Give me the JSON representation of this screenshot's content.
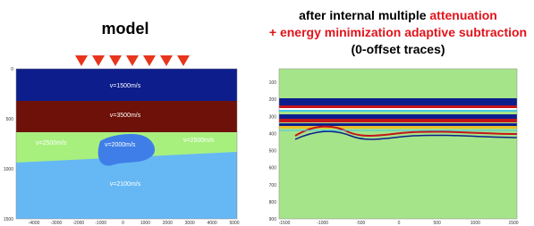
{
  "left_panel": {
    "title": "model",
    "labels": [
      "v=1500m/s",
      "v=3500m/s",
      "v=2500m/s",
      "v=2000m/s",
      "v=2500m/s",
      "v=2100m/s"
    ],
    "y_ticks": [
      "0",
      "500",
      "1000",
      "1500"
    ],
    "x_ticks": [
      "-4000",
      "-3000",
      "-2000",
      "-1000",
      "0",
      "1000",
      "2000",
      "3000",
      "4000",
      "5000"
    ]
  },
  "right_panel": {
    "title_line1_black": "after internal multiple ",
    "title_line1_red": "attenuation",
    "title_line2": "+ energy minimization adaptive subtraction",
    "title_line3": "(0-offset traces)",
    "y_ticks": [
      "100",
      "200",
      "300",
      "400",
      "500",
      "600",
      "700",
      "800",
      "900"
    ],
    "x_ticks": [
      "-1500",
      "-1000",
      "-500",
      "0",
      "500",
      "1000",
      "1500"
    ]
  }
}
